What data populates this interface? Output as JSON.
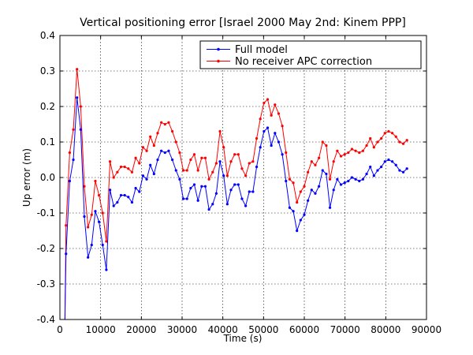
{
  "chart_data": {
    "type": "line",
    "title": "Vertical positioning error [Israel 2000 May 2nd: Kinem PPP]",
    "xlabel": "Time (s)",
    "ylabel": "Up error (m)",
    "xlim": [
      0,
      90000
    ],
    "ylim": [
      -0.4,
      0.4
    ],
    "x_ticks": [
      0,
      10000,
      20000,
      30000,
      40000,
      50000,
      60000,
      70000,
      80000,
      90000
    ],
    "y_ticks": [
      -0.4,
      -0.3,
      -0.2,
      -0.1,
      0.0,
      0.1,
      0.2,
      0.3,
      0.4
    ],
    "x_tick_labels": [
      "0",
      "10000",
      "20000",
      "30000",
      "40000",
      "50000",
      "60000",
      "70000",
      "80000",
      "90000"
    ],
    "y_tick_labels": [
      "-0.4",
      "-0.3",
      "-0.2",
      "-0.1",
      "0.0",
      "0.1",
      "0.2",
      "0.3",
      "0.4"
    ],
    "grid": true,
    "legend_position": "top-right",
    "series": [
      {
        "name": "Full model",
        "color": "#0000ff",
        "x": [
          1500,
          2400,
          3300,
          4200,
          5100,
          6000,
          6900,
          7800,
          8700,
          9600,
          10500,
          11400,
          12300,
          13200,
          14100,
          15000,
          15900,
          16800,
          17700,
          18600,
          19500,
          20400,
          21300,
          22200,
          23100,
          24000,
          24900,
          25800,
          26700,
          27600,
          28500,
          29400,
          30300,
          31200,
          32100,
          33000,
          33900,
          34800,
          35700,
          36600,
          37500,
          38400,
          39300,
          40200,
          41100,
          42000,
          42900,
          43800,
          44700,
          45600,
          46500,
          47400,
          48300,
          49200,
          50100,
          51000,
          51900,
          52800,
          53700,
          54600,
          55500,
          56400,
          57300,
          58200,
          59100,
          60000,
          60900,
          61800,
          62700,
          63600,
          64500,
          65400,
          66300,
          67200,
          68100,
          69000,
          69900,
          70800,
          71700,
          72600,
          73500,
          74400,
          75300,
          76200,
          77100,
          78000,
          78900,
          79800,
          80700,
          81600,
          82500,
          83400,
          84300,
          85200
        ],
        "values": [
          -0.215,
          -0.01,
          0.05,
          0.225,
          0.135,
          -0.11,
          -0.225,
          -0.19,
          -0.095,
          -0.125,
          -0.19,
          -0.26,
          -0.035,
          -0.08,
          -0.07,
          -0.05,
          -0.05,
          -0.055,
          -0.07,
          -0.03,
          -0.04,
          0.005,
          -0.005,
          0.035,
          0.01,
          0.05,
          0.075,
          0.07,
          0.075,
          0.05,
          0.02,
          -0.005,
          -0.06,
          -0.06,
          -0.03,
          -0.02,
          -0.065,
          -0.025,
          -0.025,
          -0.09,
          -0.075,
          -0.045,
          0.045,
          0.005,
          -0.075,
          -0.035,
          -0.02,
          -0.02,
          -0.06,
          -0.08,
          -0.04,
          -0.04,
          0.03,
          0.085,
          0.13,
          0.14,
          0.09,
          0.125,
          0.1,
          0.065,
          -0.01,
          -0.085,
          -0.095,
          -0.15,
          -0.12,
          -0.105,
          -0.065,
          -0.035,
          -0.045,
          -0.025,
          0.02,
          0.01,
          -0.085,
          -0.035,
          -0.005,
          -0.02,
          -0.015,
          -0.01,
          0.0,
          -0.005,
          -0.01,
          -0.005,
          0.01,
          0.03,
          0.005,
          0.02,
          0.03,
          0.045,
          0.05,
          0.045,
          0.035,
          0.02,
          0.015,
          0.025
        ]
      },
      {
        "name": "No receiver APC correction",
        "color": "#ff0000",
        "x": [
          1500,
          2400,
          3300,
          4200,
          5100,
          6000,
          6900,
          7800,
          8700,
          9600,
          10500,
          11400,
          12300,
          13200,
          14100,
          15000,
          15900,
          16800,
          17700,
          18600,
          19500,
          20400,
          21300,
          22200,
          23100,
          24000,
          24900,
          25800,
          26700,
          27600,
          28500,
          29400,
          30300,
          31200,
          32100,
          33000,
          33900,
          34800,
          35700,
          36600,
          37500,
          38400,
          39300,
          40200,
          41100,
          42000,
          42900,
          43800,
          44700,
          45600,
          46500,
          47400,
          48300,
          49200,
          50100,
          51000,
          51900,
          52800,
          53700,
          54600,
          55500,
          56400,
          57300,
          58200,
          59100,
          60000,
          60900,
          61800,
          62700,
          63600,
          64500,
          65400,
          66300,
          67200,
          68100,
          69000,
          69900,
          70800,
          71700,
          72600,
          73500,
          74400,
          75300,
          76200,
          77100,
          78000,
          78900,
          79800,
          80700,
          81600,
          82500,
          83400,
          84300,
          85200
        ],
        "values": [
          -0.135,
          0.07,
          0.135,
          0.305,
          0.2,
          -0.025,
          -0.14,
          -0.105,
          -0.01,
          -0.05,
          -0.1,
          -0.18,
          0.045,
          0.0,
          0.015,
          0.03,
          0.03,
          0.025,
          0.015,
          0.055,
          0.04,
          0.085,
          0.075,
          0.115,
          0.09,
          0.125,
          0.155,
          0.15,
          0.155,
          0.13,
          0.1,
          0.07,
          0.02,
          0.02,
          0.05,
          0.065,
          0.02,
          0.055,
          0.055,
          -0.005,
          0.015,
          0.04,
          0.13,
          0.085,
          0.005,
          0.045,
          0.065,
          0.065,
          0.025,
          0.005,
          0.04,
          0.045,
          0.11,
          0.165,
          0.21,
          0.22,
          0.175,
          0.205,
          0.18,
          0.145,
          0.07,
          -0.005,
          -0.015,
          -0.07,
          -0.04,
          -0.025,
          0.015,
          0.045,
          0.035,
          0.055,
          0.1,
          0.09,
          -0.005,
          0.045,
          0.075,
          0.06,
          0.065,
          0.07,
          0.08,
          0.075,
          0.07,
          0.075,
          0.09,
          0.11,
          0.085,
          0.1,
          0.11,
          0.125,
          0.13,
          0.125,
          0.115,
          0.1,
          0.095,
          0.105
        ]
      }
    ]
  }
}
